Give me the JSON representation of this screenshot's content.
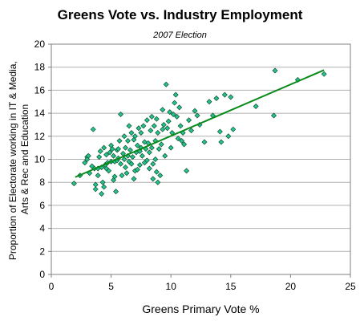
{
  "chart_data": {
    "type": "scatter",
    "title": "Greens Vote vs. Industry Employment",
    "subtitle": "2007 Election",
    "xlabel": "Greens Primary Vote %",
    "ylabel_lines": [
      "Proportion of Electorate working in IT & Media,",
      "Arts & Rec and Education"
    ],
    "xlim": [
      0,
      25
    ],
    "ylim": [
      0,
      20
    ],
    "x_ticks": [
      0,
      5,
      10,
      15,
      20,
      25
    ],
    "y_ticks": [
      0,
      2,
      4,
      6,
      8,
      10,
      12,
      14,
      16,
      18,
      20
    ],
    "grid": "horizontal",
    "legend": "none",
    "trendline": {
      "type": "linear",
      "x": [
        2.0,
        22.8
      ],
      "y": [
        8.45,
        17.75
      ]
    },
    "colors": {
      "marker_fill": "#25c48f",
      "marker_edge": "#0b4d2b",
      "trendline": "#0a8a1a"
    },
    "points": [
      [
        1.9,
        7.9
      ],
      [
        2.4,
        8.6
      ],
      [
        2.8,
        9.7
      ],
      [
        3.0,
        10.2
      ],
      [
        3.0,
        10.0
      ],
      [
        3.1,
        10.3
      ],
      [
        3.2,
        8.8
      ],
      [
        3.4,
        9.4
      ],
      [
        3.5,
        12.6
      ],
      [
        3.6,
        9.2
      ],
      [
        3.7,
        7.8
      ],
      [
        3.7,
        7.4
      ],
      [
        3.9,
        9.2
      ],
      [
        3.9,
        8.6
      ],
      [
        4.0,
        10.2
      ],
      [
        4.1,
        10.7
      ],
      [
        4.2,
        9.3
      ],
      [
        4.2,
        7.0
      ],
      [
        4.3,
        8.0
      ],
      [
        4.4,
        7.6
      ],
      [
        4.4,
        11.0
      ],
      [
        4.5,
        9.5
      ],
      [
        4.6,
        10.4
      ],
      [
        4.6,
        9.2
      ],
      [
        4.7,
        9.7
      ],
      [
        4.8,
        9.0
      ],
      [
        4.9,
        10.6
      ],
      [
        5.0,
        9.8
      ],
      [
        5.0,
        11.2
      ],
      [
        5.1,
        10.9
      ],
      [
        5.2,
        10.3
      ],
      [
        5.2,
        8.2
      ],
      [
        5.3,
        9.8
      ],
      [
        5.3,
        8.5
      ],
      [
        5.4,
        7.2
      ],
      [
        5.5,
        10.8
      ],
      [
        5.5,
        9.9
      ],
      [
        5.6,
        10.1
      ],
      [
        5.6,
        10.9
      ],
      [
        5.7,
        11.6
      ],
      [
        5.8,
        9.6
      ],
      [
        5.8,
        13.9
      ],
      [
        5.9,
        8.6
      ],
      [
        6.0,
        10.5
      ],
      [
        6.1,
        10.0
      ],
      [
        6.1,
        12.0
      ],
      [
        6.2,
        11.0
      ],
      [
        6.2,
        9.3
      ],
      [
        6.3,
        8.8
      ],
      [
        6.4,
        11.6
      ],
      [
        6.4,
        10.3
      ],
      [
        6.5,
        12.9
      ],
      [
        6.5,
        9.8
      ],
      [
        6.6,
        10.8
      ],
      [
        6.7,
        12.3
      ],
      [
        6.7,
        9.6
      ],
      [
        6.8,
        10.2
      ],
      [
        6.9,
        11.7
      ],
      [
        6.9,
        8.3
      ],
      [
        7.0,
        9.0
      ],
      [
        7.0,
        12.0
      ],
      [
        7.1,
        10.6
      ],
      [
        7.2,
        11.2
      ],
      [
        7.2,
        9.1
      ],
      [
        7.3,
        12.7
      ],
      [
        7.4,
        10.7
      ],
      [
        7.4,
        9.5
      ],
      [
        7.5,
        12.3
      ],
      [
        7.5,
        11.0
      ],
      [
        7.6,
        10.3
      ],
      [
        7.7,
        12.9
      ],
      [
        7.8,
        11.5
      ],
      [
        7.8,
        9.7
      ],
      [
        7.9,
        10.9
      ],
      [
        8.0,
        9.9
      ],
      [
        8.0,
        13.4
      ],
      [
        8.1,
        11.4
      ],
      [
        8.2,
        10.6
      ],
      [
        8.2,
        9.2
      ],
      [
        8.3,
        12.5
      ],
      [
        8.4,
        13.7
      ],
      [
        8.4,
        11.0
      ],
      [
        8.5,
        9.6
      ],
      [
        8.5,
        8.3
      ],
      [
        8.6,
        12.9
      ],
      [
        8.7,
        11.6
      ],
      [
        8.7,
        10.0
      ],
      [
        8.8,
        13.5
      ],
      [
        8.8,
        8.9
      ],
      [
        8.9,
        12.3
      ],
      [
        8.9,
        8.0
      ],
      [
        9.0,
        10.9
      ],
      [
        9.1,
        8.6
      ],
      [
        9.2,
        11.3
      ],
      [
        9.3,
        14.3
      ],
      [
        9.3,
        12.6
      ],
      [
        9.4,
        13.0
      ],
      [
        9.5,
        10.3
      ],
      [
        9.6,
        16.5
      ],
      [
        9.7,
        12.7
      ],
      [
        9.8,
        13.3
      ],
      [
        9.9,
        14.1
      ],
      [
        10.0,
        11.0
      ],
      [
        10.1,
        12.3
      ],
      [
        10.2,
        13.9
      ],
      [
        10.3,
        14.9
      ],
      [
        10.4,
        15.6
      ],
      [
        10.5,
        13.7
      ],
      [
        10.6,
        11.8
      ],
      [
        10.7,
        14.5
      ],
      [
        10.8,
        12.9
      ],
      [
        10.9,
        11.6
      ],
      [
        11.0,
        12.3
      ],
      [
        11.1,
        11.3
      ],
      [
        11.3,
        9.0
      ],
      [
        11.5,
        13.4
      ],
      [
        11.7,
        12.5
      ],
      [
        12.0,
        14.2
      ],
      [
        12.2,
        13.8
      ],
      [
        12.4,
        13.0
      ],
      [
        12.8,
        11.5
      ],
      [
        13.2,
        15.0
      ],
      [
        13.5,
        13.8
      ],
      [
        13.8,
        15.3
      ],
      [
        14.1,
        12.4
      ],
      [
        14.2,
        11.5
      ],
      [
        14.5,
        15.6
      ],
      [
        14.8,
        12.0
      ],
      [
        15.0,
        15.4
      ],
      [
        15.2,
        12.6
      ],
      [
        17.1,
        14.6
      ],
      [
        18.6,
        13.8
      ],
      [
        18.7,
        17.7
      ],
      [
        20.6,
        16.9
      ],
      [
        22.8,
        17.4
      ]
    ]
  }
}
